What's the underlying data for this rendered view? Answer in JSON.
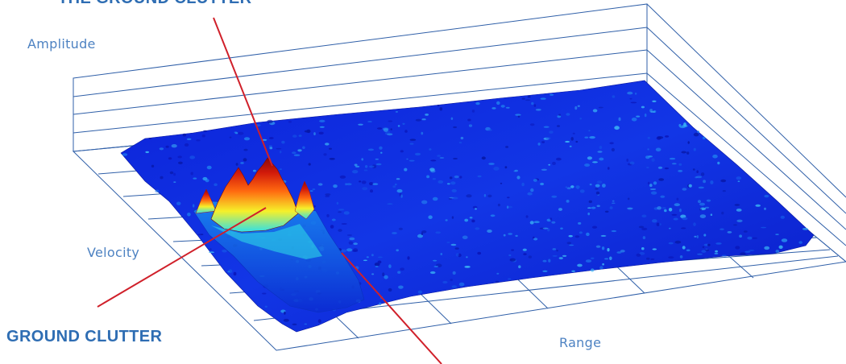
{
  "axes": {
    "amplitude_label": "Amplitude",
    "velocity_label": "Velocity",
    "range_label": "Range"
  },
  "annotations": {
    "top_callout": "THE GROUND CLUTTER",
    "ground_clutter": "GROUND CLUTTER"
  },
  "colors": {
    "grid": "#2f5fa8",
    "label_text": "#4d82c2",
    "callout_text": "#2e6db3",
    "pointer_lines": "#d0202a",
    "surface_low": "#0a1fd6",
    "surface_mid": "#1f8ff0",
    "surface_cyan": "#2fe0e8",
    "surface_yellow": "#f6f02a",
    "surface_orange": "#ff6a10",
    "surface_peak": "#8a0a0a"
  }
}
